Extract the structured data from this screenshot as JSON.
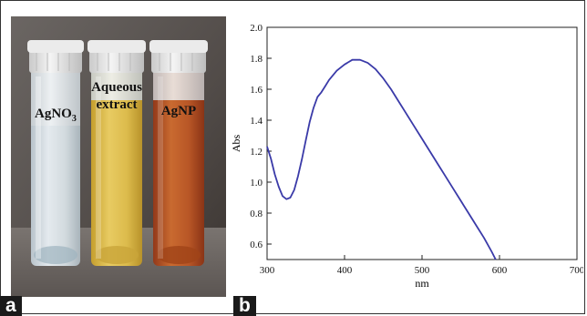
{
  "panels": {
    "a": "a",
    "b": "b"
  },
  "photo": {
    "labels": [
      {
        "main": "AgNO",
        "sub": "3"
      },
      {
        "line1": "Aqueous",
        "line2": "extract"
      },
      {
        "main": "AgNP"
      }
    ],
    "colors": {
      "background": "#56504d",
      "vial_clear": "#d6dde2",
      "extract": "#d9b74a",
      "agnp": "#b04e1c",
      "cap": "#e6e6e6"
    }
  },
  "chart_data": {
    "type": "line",
    "title": "",
    "xlabel": "nm",
    "ylabel": "Abs",
    "xlim": [
      300,
      700
    ],
    "ylim": [
      0.5,
      2.0
    ],
    "xticks": [
      "300",
      "400",
      "500",
      "600",
      "700"
    ],
    "yticks": [
      "0.6",
      "0.8",
      "1.0",
      "1.2",
      "1.4",
      "1.6",
      "1.8",
      "2.0"
    ],
    "series": [
      {
        "color": "#3a3aa8",
        "x": [
          300,
          305,
          310,
          315,
          320,
          325,
          330,
          335,
          340,
          345,
          350,
          355,
          360,
          365,
          370,
          375,
          380,
          390,
          400,
          410,
          420,
          430,
          440,
          450,
          460,
          470,
          480,
          490,
          500,
          510,
          520,
          530,
          540,
          550,
          560,
          570,
          580,
          590,
          595
        ],
        "y": [
          1.23,
          1.15,
          1.05,
          0.97,
          0.91,
          0.89,
          0.9,
          0.95,
          1.04,
          1.15,
          1.27,
          1.39,
          1.48,
          1.55,
          1.58,
          1.62,
          1.66,
          1.72,
          1.76,
          1.79,
          1.79,
          1.77,
          1.73,
          1.67,
          1.6,
          1.52,
          1.44,
          1.36,
          1.28,
          1.2,
          1.12,
          1.04,
          0.96,
          0.88,
          0.8,
          0.72,
          0.64,
          0.55,
          0.5
        ]
      }
    ]
  }
}
